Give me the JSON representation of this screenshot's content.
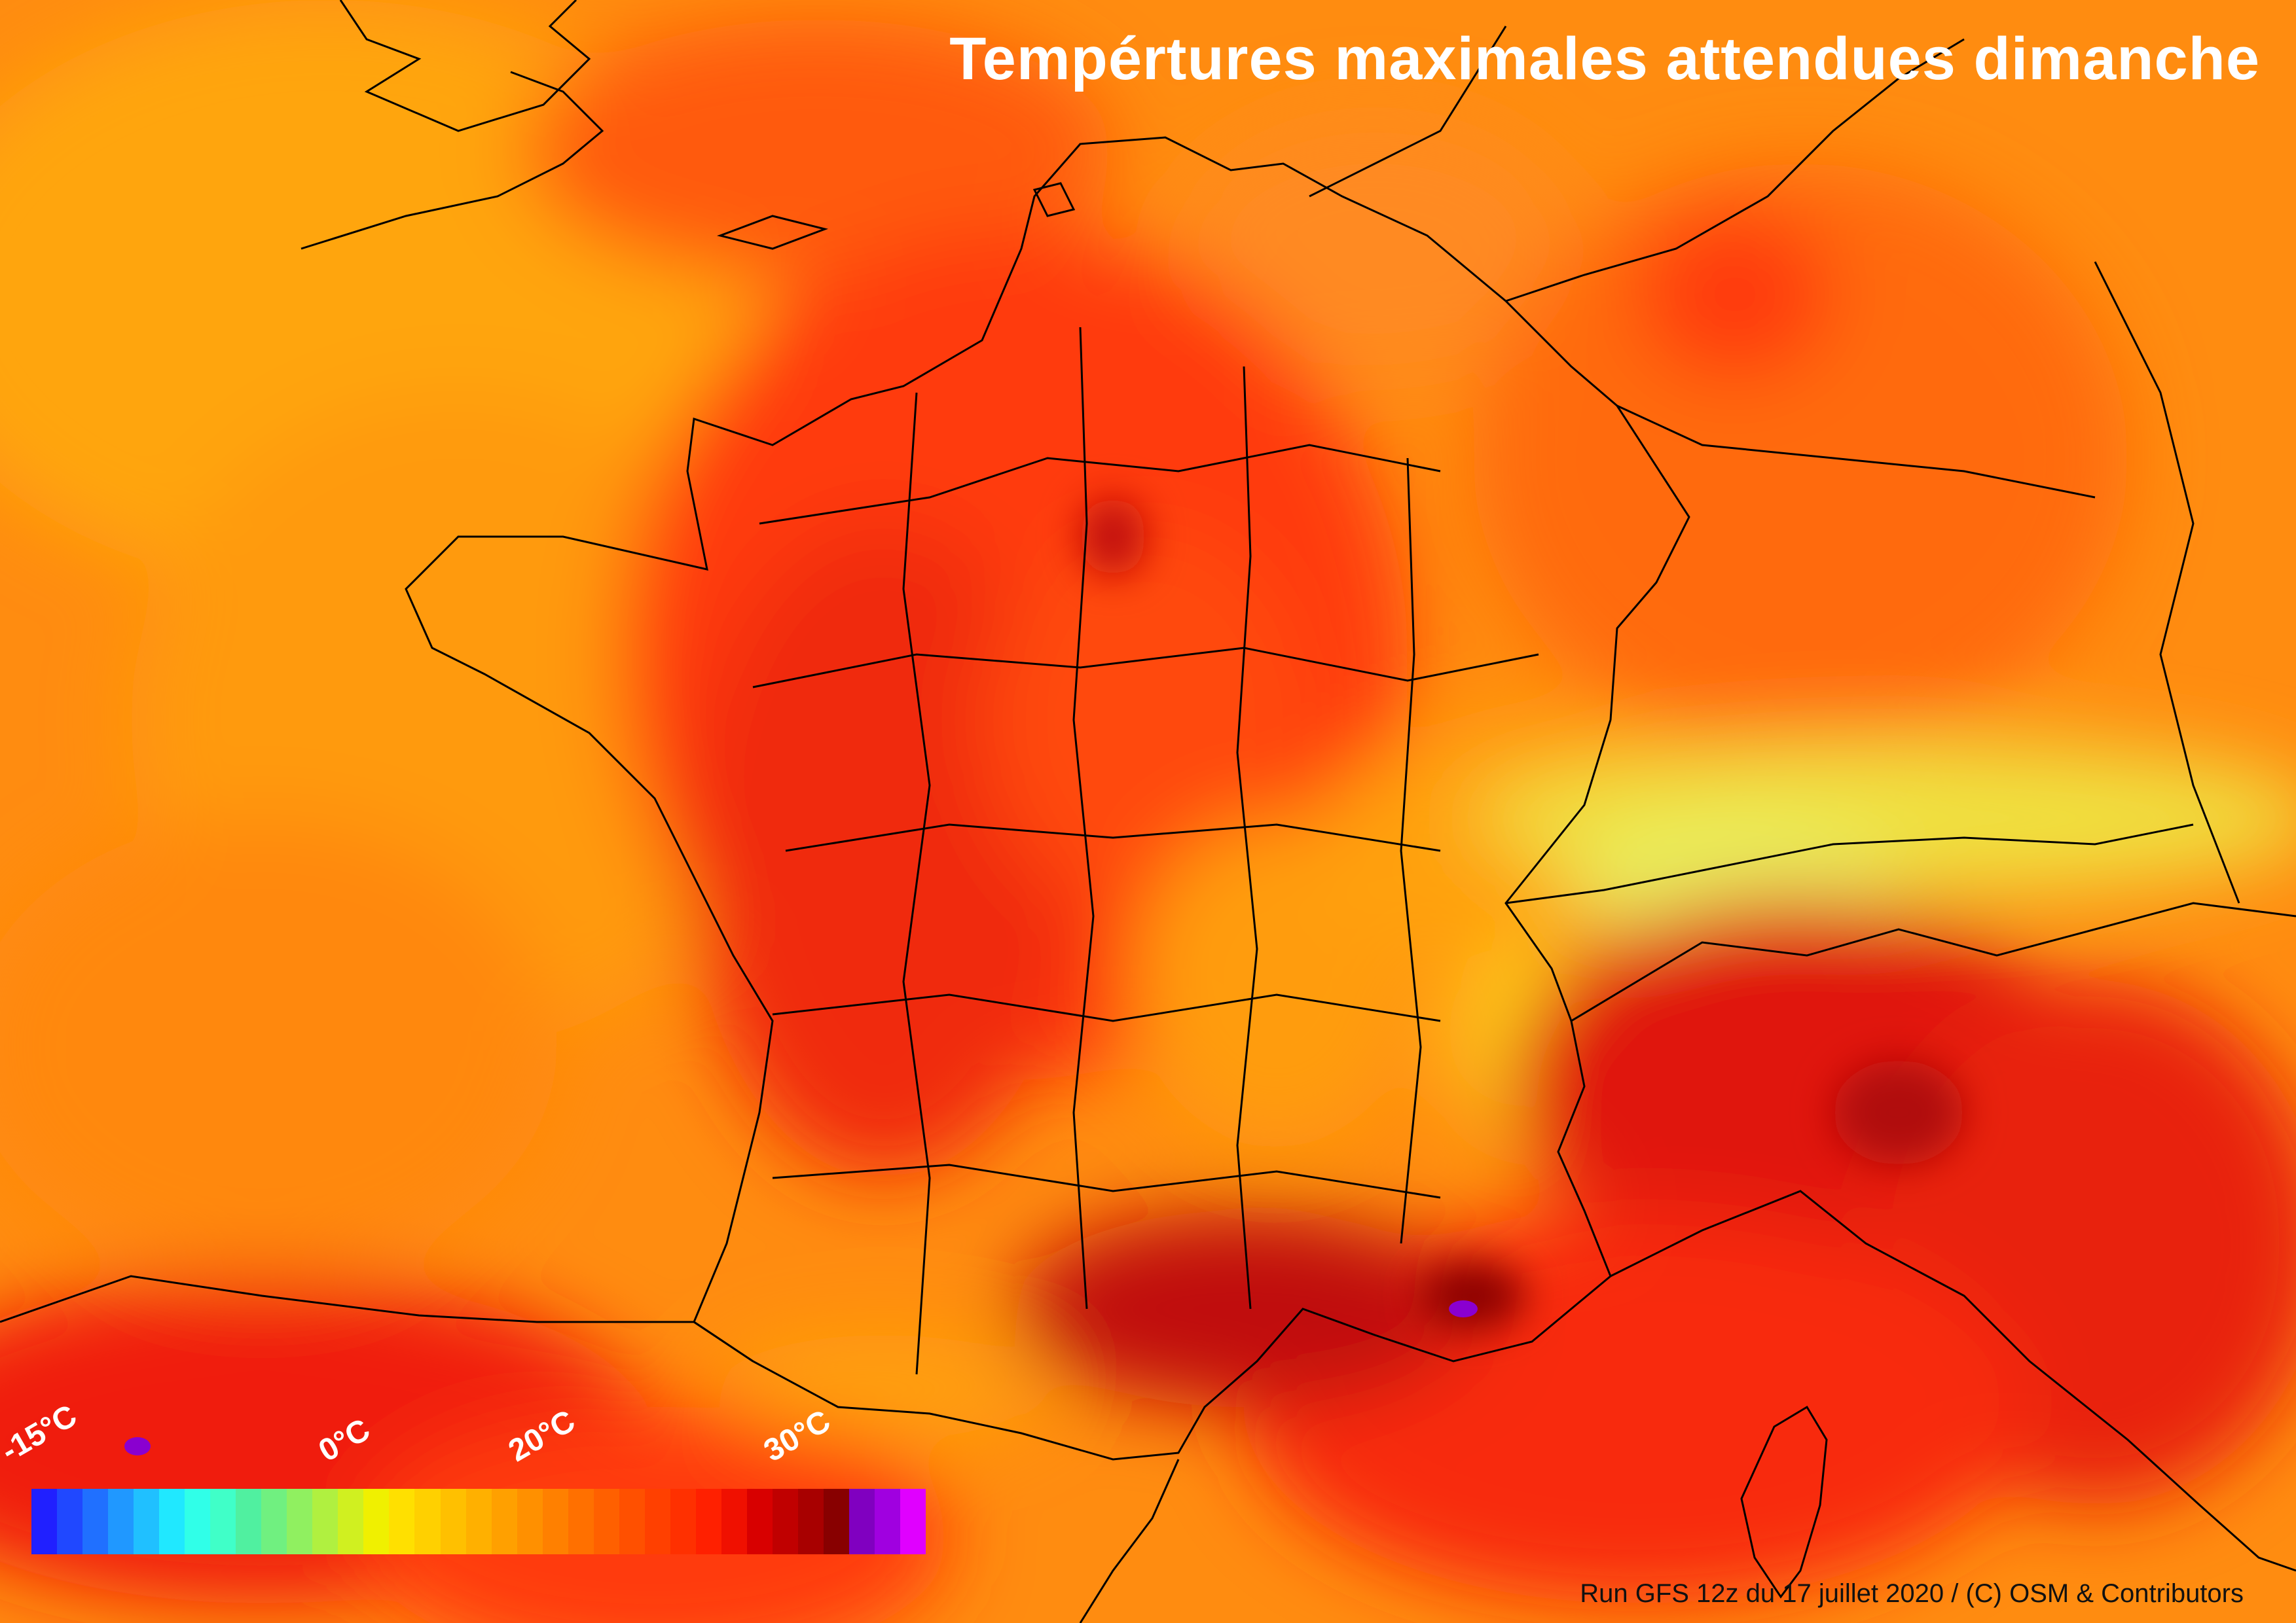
{
  "title": "Tempértures maximales attendues dimanche",
  "legend": {
    "ticks": [
      {
        "label": "-15°C",
        "value": -15
      },
      {
        "label": "0°C",
        "value": 0
      },
      {
        "label": "20°C",
        "value": 20
      },
      {
        "label": "30°C",
        "value": 30
      }
    ],
    "colors": [
      "#2020ff",
      "#2048ff",
      "#2070ff",
      "#2098ff",
      "#20c0ff",
      "#20e8ff",
      "#30ffe8",
      "#40ffc8",
      "#50f0a0",
      "#70f080",
      "#90f060",
      "#b0f040",
      "#d0f020",
      "#f0f000",
      "#ffe000",
      "#ffd000",
      "#ffc000",
      "#ffb000",
      "#ffa000",
      "#ff9000",
      "#ff8000",
      "#ff7000",
      "#ff6000",
      "#ff5000",
      "#ff4000",
      "#ff3000",
      "#ff2000",
      "#f01000",
      "#d80000",
      "#c00000",
      "#a80000",
      "#880000",
      "#8000c0",
      "#a000e0",
      "#e000ff"
    ]
  },
  "credit": "Run GFS 12z du 17 juillet 2020 / (C) OSM & Contributors"
}
